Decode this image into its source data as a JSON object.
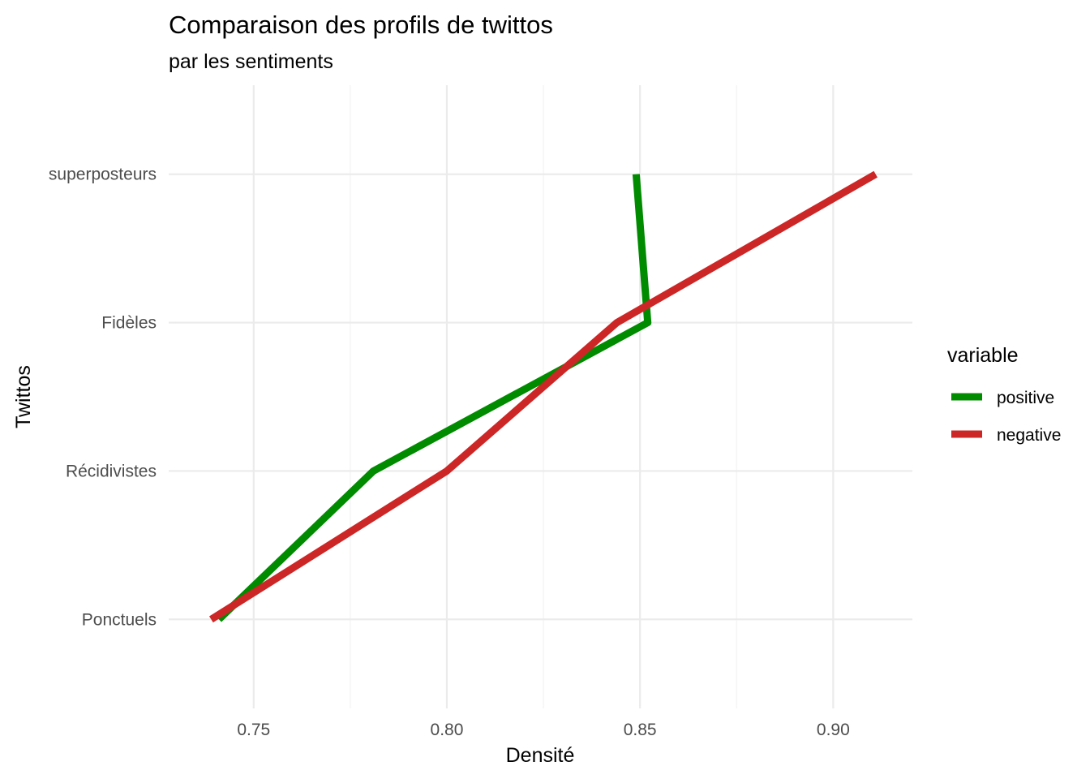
{
  "chart_data": {
    "type": "line",
    "title": "Comparaison des profils de twittos",
    "subtitle": "par les sentiments",
    "xlabel": "Densité",
    "ylabel": "Twittos",
    "categories": [
      "Ponctuels",
      "Récidivistes",
      "Fidèles",
      "superposteurs"
    ],
    "xlim": [
      0.728,
      0.9205
    ],
    "x_ticks": [
      0.75,
      0.8,
      0.85,
      0.9
    ],
    "x_tick_labels": [
      "0.75",
      "0.80",
      "0.85",
      "0.90"
    ],
    "grid": true,
    "legend": {
      "title": "variable",
      "position": "right"
    },
    "series": [
      {
        "name": "positive",
        "color": "#008B00",
        "values": [
          0.741,
          0.781,
          0.852,
          0.849
        ]
      },
      {
        "name": "negative",
        "color": "#CD2626",
        "values": [
          0.739,
          0.8,
          0.844,
          0.911
        ]
      }
    ]
  }
}
